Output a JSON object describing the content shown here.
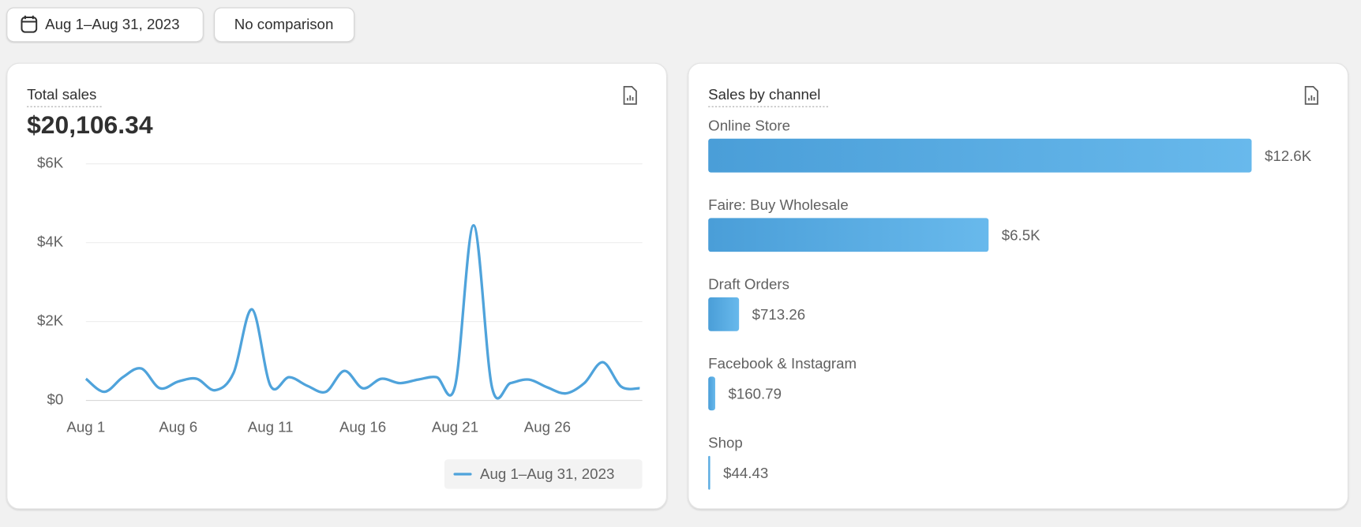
{
  "toolbar": {
    "date_range": "Aug 1–Aug 31, 2023",
    "comparison": "No comparison"
  },
  "chart_data": [
    {
      "type": "line",
      "title": "Total sales",
      "total": "$20,106.34",
      "categories": [
        "Aug 1",
        null,
        null,
        null,
        null,
        "Aug 6",
        null,
        null,
        null,
        null,
        "Aug 11",
        null,
        null,
        null,
        null,
        "Aug 16",
        null,
        null,
        null,
        null,
        "Aug 21",
        null,
        null,
        null,
        null,
        "Aug 26",
        null,
        null,
        null,
        null,
        null
      ],
      "series": [
        {
          "name": "Aug 1–Aug 31, 2023",
          "color": "#4fa3db",
          "values": [
            550,
            220,
            590,
            810,
            310,
            480,
            550,
            260,
            700,
            2310,
            370,
            590,
            370,
            220,
            750,
            310,
            550,
            440,
            530,
            590,
            370,
            4440,
            330,
            440,
            530,
            330,
            180,
            440,
            970,
            350,
            310
          ]
        }
      ],
      "ylim": [
        0,
        6000
      ],
      "yticks": [
        {
          "value": 0,
          "label": "$0"
        },
        {
          "value": 2000,
          "label": "$2K"
        },
        {
          "value": 4000,
          "label": "$4K"
        },
        {
          "value": 6000,
          "label": "$6K"
        }
      ],
      "grid": true
    },
    {
      "type": "bar",
      "orientation": "horizontal",
      "title": "Sales by channel",
      "categories": [
        "Online Store",
        "Faire: Buy Wholesale",
        "Draft Orders",
        "Facebook & Instagram",
        "Shop"
      ],
      "values": [
        12600,
        6500,
        713.26,
        160.79,
        44.43
      ],
      "value_labels": [
        "$12.6K",
        "$6.5K",
        "$713.26",
        "$160.79",
        "$44.43"
      ],
      "color": "#50a2dc"
    }
  ]
}
